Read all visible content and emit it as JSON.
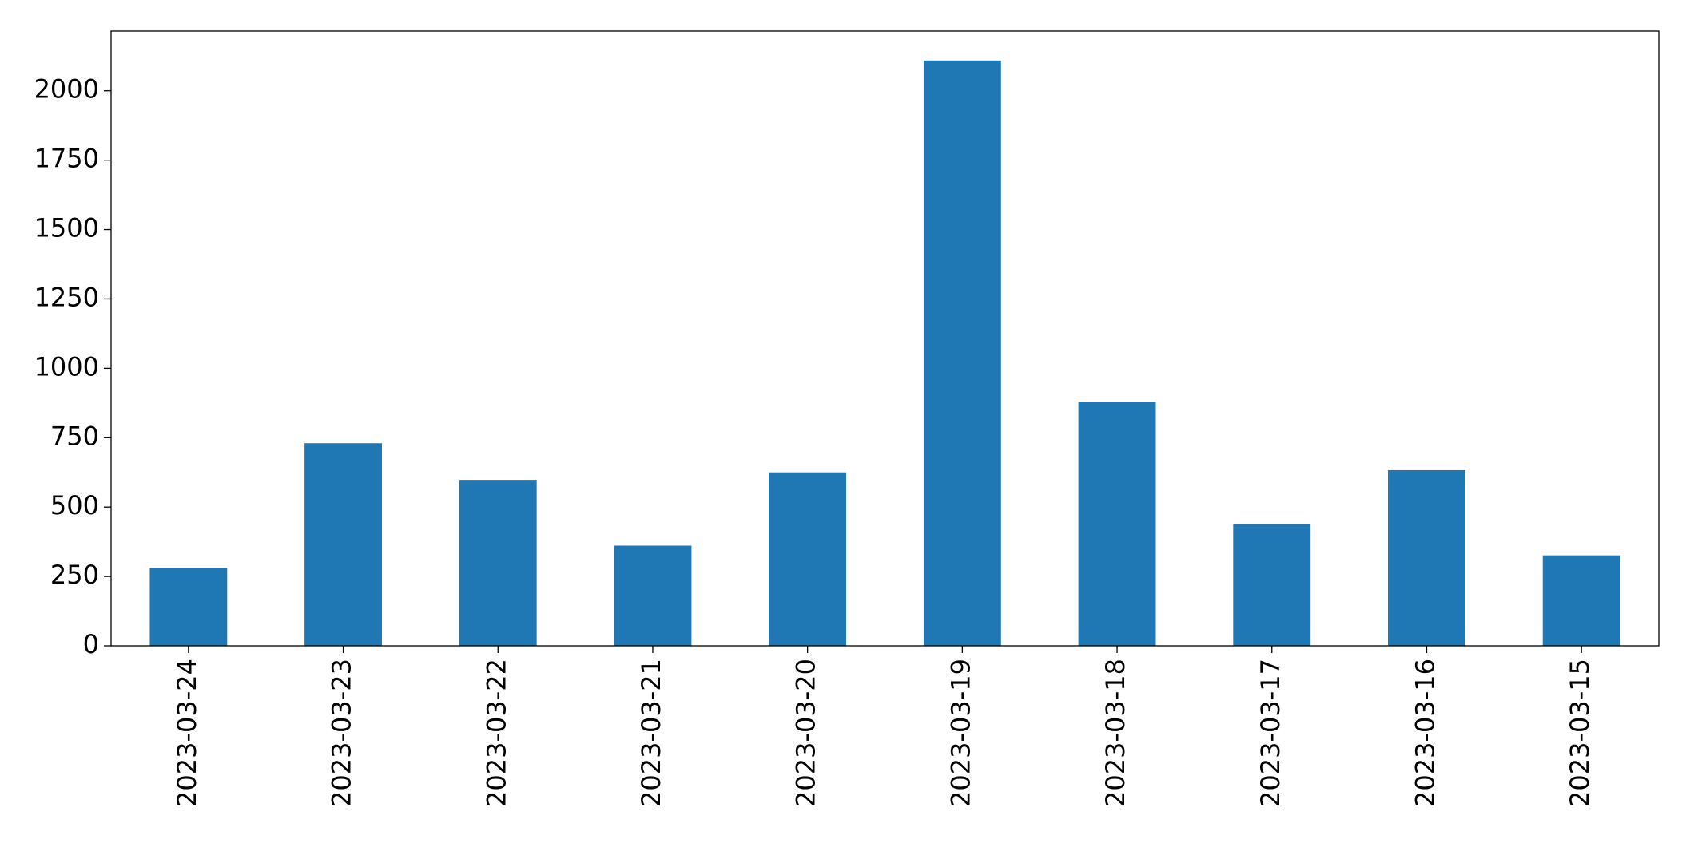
{
  "chart_data": {
    "type": "bar",
    "categories": [
      "2023-03-24",
      "2023-03-23",
      "2023-03-22",
      "2023-03-21",
      "2023-03-20",
      "2023-03-19",
      "2023-03-18",
      "2023-03-17",
      "2023-03-16",
      "2023-03-15"
    ],
    "values": [
      280,
      730,
      598,
      361,
      625,
      2109,
      878,
      439,
      633,
      326
    ],
    "color": "#1f77b4",
    "ylim": [
      0,
      2215
    ],
    "yticks": [
      0,
      250,
      500,
      750,
      1000,
      1250,
      1500,
      1750,
      2000
    ],
    "grid": false
  }
}
